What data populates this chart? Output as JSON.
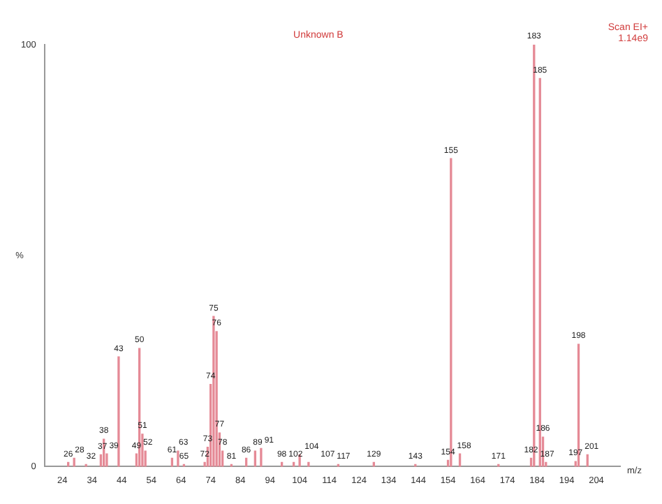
{
  "chart_data": {
    "type": "bar",
    "title": "Unknown B",
    "xlabel": "m/z",
    "ylabel": "%",
    "x": [
      26,
      28,
      32,
      37,
      38,
      39,
      43,
      49,
      50,
      51,
      52,
      61,
      63,
      65,
      72,
      73,
      74,
      75,
      76,
      77,
      78,
      81,
      86,
      89,
      91,
      98,
      102,
      104,
      107,
      117,
      129,
      143,
      154,
      155,
      158,
      171,
      182,
      183,
      185,
      186,
      187,
      197,
      198,
      201
    ],
    "values": [
      1,
      2,
      0.5,
      2.8,
      6.5,
      3,
      26,
      3,
      28,
      7.7,
      3.7,
      2,
      3.7,
      0.5,
      1,
      4.6,
      19.5,
      35.6,
      32,
      8,
      3.7,
      0.5,
      2,
      3.7,
      4.3,
      1,
      1,
      2.8,
      1,
      0.5,
      1,
      0.5,
      1.5,
      73,
      3,
      0.5,
      2,
      100,
      92,
      7,
      1,
      1.2,
      29,
      2.8
    ],
    "annotations": [
      "Scan EI+\n1.14e9",
      {
        "text": "26",
        "x": 26,
        "y": 1
      },
      {
        "text": "28",
        "x": 28,
        "y": 2
      },
      {
        "text": "32",
        "x": 32,
        "y": 0.5
      },
      {
        "text": "37",
        "x": 37,
        "y": 2.8
      },
      {
        "text": "38",
        "x": 38,
        "y": 6.5
      },
      {
        "text": "39",
        "x": 39,
        "y": 3
      },
      {
        "text": "43",
        "x": 43,
        "y": 26
      },
      {
        "text": "49",
        "x": 49,
        "y": 3
      },
      {
        "text": "50",
        "x": 50,
        "y": 28
      },
      {
        "text": "51",
        "x": 51,
        "y": 7.7
      },
      {
        "text": "52",
        "x": 52,
        "y": 3.7
      },
      {
        "text": "61",
        "x": 61,
        "y": 2
      },
      {
        "text": "63",
        "x": 63,
        "y": 3.7
      },
      {
        "text": "65",
        "x": 65,
        "y": 0.5
      },
      {
        "text": "72",
        "x": 72,
        "y": 1
      },
      {
        "text": "73",
        "x": 73,
        "y": 4.6
      },
      {
        "text": "74",
        "x": 74,
        "y": 19.5
      },
      {
        "text": "75",
        "x": 75,
        "y": 35.6
      },
      {
        "text": "76",
        "x": 76,
        "y": 32
      },
      {
        "text": "77",
        "x": 77,
        "y": 8
      },
      {
        "text": "78",
        "x": 78,
        "y": 3.7
      },
      {
        "text": "81",
        "x": 81,
        "y": 0.5
      },
      {
        "text": "86",
        "x": 86,
        "y": 2
      },
      {
        "text": "89",
        "x": 89,
        "y": 3.7
      },
      {
        "text": "91",
        "x": 91,
        "y": 4.3
      },
      {
        "text": "98",
        "x": 98,
        "y": 1
      },
      {
        "text": "102",
        "x": 102,
        "y": 1
      },
      {
        "text": "104",
        "x": 104,
        "y": 2.8
      },
      {
        "text": "107",
        "x": 107,
        "y": 1
      },
      {
        "text": "117",
        "x": 117,
        "y": 0.5
      },
      {
        "text": "129",
        "x": 129,
        "y": 1
      },
      {
        "text": "143",
        "x": 143,
        "y": 0.5
      },
      {
        "text": "154",
        "x": 154,
        "y": 1.5
      },
      {
        "text": "155",
        "x": 155,
        "y": 73
      },
      {
        "text": "158",
        "x": 158,
        "y": 3
      },
      {
        "text": "171",
        "x": 171,
        "y": 0.5
      },
      {
        "text": "182",
        "x": 182,
        "y": 2
      },
      {
        "text": "183",
        "x": 183,
        "y": 100
      },
      {
        "text": "185",
        "x": 185,
        "y": 92
      },
      {
        "text": "186",
        "x": 186,
        "y": 7
      },
      {
        "text": "187",
        "x": 187,
        "y": 1
      },
      {
        "text": "197",
        "x": 197,
        "y": 1.2
      },
      {
        "text": "198",
        "x": 198,
        "y": 29
      },
      {
        "text": "201",
        "x": 201,
        "y": 2.8
      }
    ],
    "color": "#e58a96",
    "xlim": [
      18,
      212
    ],
    "xticks": [
      24,
      34,
      44,
      54,
      64,
      74,
      84,
      94,
      104,
      114,
      124,
      134,
      144,
      154,
      164,
      174,
      184,
      194,
      204
    ],
    "ylim": [
      0,
      100
    ],
    "yticks": [
      0,
      100
    ],
    "grid": false
  }
}
